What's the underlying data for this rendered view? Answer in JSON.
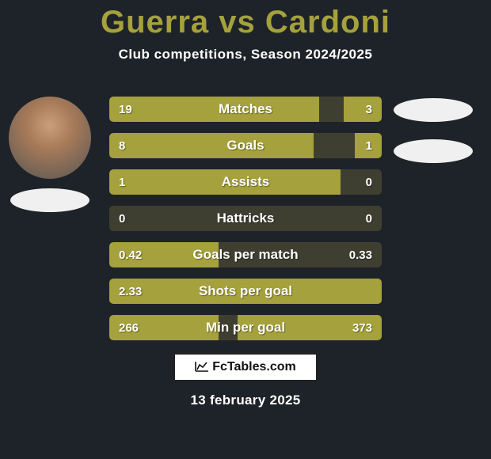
{
  "title_left": "Guerra",
  "title_vs": "vs",
  "title_right": "Cardoni",
  "subtitle": "Club competitions, Season 2024/2025",
  "colors": {
    "accent": "#a5a13c",
    "bar_bg": "#3f3f31",
    "page_bg": "#1e2329",
    "text": "#ffffff"
  },
  "bars": [
    {
      "label": "Matches",
      "left": "19",
      "right": "3",
      "left_pct": 77,
      "right_pct": 14
    },
    {
      "label": "Goals",
      "left": "8",
      "right": "1",
      "left_pct": 75,
      "right_pct": 10
    },
    {
      "label": "Assists",
      "left": "1",
      "right": "0",
      "left_pct": 85,
      "right_pct": 0
    },
    {
      "label": "Hattricks",
      "left": "0",
      "right": "0",
      "left_pct": 0,
      "right_pct": 0
    },
    {
      "label": "Goals per match",
      "left": "0.42",
      "right": "0.33",
      "left_pct": 40,
      "right_pct": 0
    },
    {
      "label": "Shots per goal",
      "left": "2.33",
      "right": "",
      "left_pct": 100,
      "right_pct": 0
    },
    {
      "label": "Min per goal",
      "left": "266",
      "right": "373",
      "left_pct": 40,
      "right_pct": 53
    }
  ],
  "logo_text": "FcTables.com",
  "date": "13 february 2025"
}
